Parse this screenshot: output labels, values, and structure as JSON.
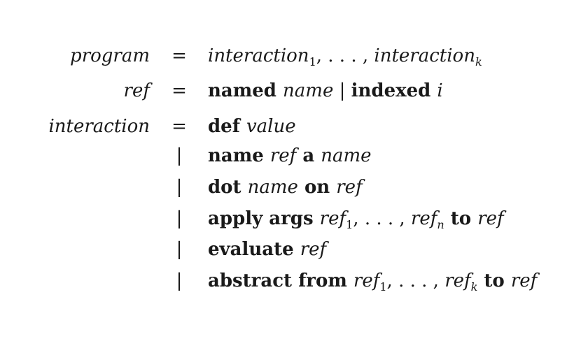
{
  "rules": [
    {
      "lhs": "program",
      "op": "=",
      "tokens": [
        {
          "kind": "it",
          "text": "interaction"
        },
        {
          "kind": "sub",
          "text": "1"
        },
        {
          "kind": "txt",
          "text": ",  . . . ,  "
        },
        {
          "kind": "it",
          "text": "interaction"
        },
        {
          "kind": "subit",
          "text": "k"
        }
      ]
    },
    {
      "lhs": "ref",
      "op": "=",
      "tokens": [
        {
          "kind": "kw",
          "text": "named "
        },
        {
          "kind": "it",
          "text": "name"
        },
        {
          "kind": "sep",
          "text": "  |  "
        },
        {
          "kind": "kw",
          "text": "indexed "
        },
        {
          "kind": "it",
          "text": "i"
        }
      ]
    },
    {
      "lhs": "interaction",
      "op": "=",
      "tokens": [
        {
          "kind": "kw",
          "text": "def "
        },
        {
          "kind": "it",
          "text": "value"
        }
      ]
    },
    {
      "lhs": "",
      "op": "|",
      "tokens": [
        {
          "kind": "kw",
          "text": "name "
        },
        {
          "kind": "it",
          "text": "ref"
        },
        {
          "kind": "kw",
          "text": " a "
        },
        {
          "kind": "it",
          "text": "name"
        }
      ]
    },
    {
      "lhs": "",
      "op": "|",
      "tokens": [
        {
          "kind": "kw",
          "text": "dot "
        },
        {
          "kind": "it",
          "text": "name"
        },
        {
          "kind": "kw",
          "text": " on "
        },
        {
          "kind": "it",
          "text": "ref"
        }
      ]
    },
    {
      "lhs": "",
      "op": "|",
      "tokens": [
        {
          "kind": "kw",
          "text": "apply args "
        },
        {
          "kind": "it",
          "text": "ref"
        },
        {
          "kind": "sub",
          "text": "1"
        },
        {
          "kind": "txt",
          "text": ", . . . , "
        },
        {
          "kind": "it",
          "text": "ref"
        },
        {
          "kind": "subit",
          "text": "n"
        },
        {
          "kind": "kw",
          "text": " to "
        },
        {
          "kind": "it",
          "text": "ref"
        }
      ]
    },
    {
      "lhs": "",
      "op": "|",
      "tokens": [
        {
          "kind": "kw",
          "text": "evaluate "
        },
        {
          "kind": "it",
          "text": "ref"
        }
      ]
    },
    {
      "lhs": "",
      "op": "|",
      "tokens": [
        {
          "kind": "kw",
          "text": "abstract from "
        },
        {
          "kind": "it",
          "text": "ref"
        },
        {
          "kind": "sub",
          "text": "1"
        },
        {
          "kind": "txt",
          "text": ", . . . , "
        },
        {
          "kind": "it",
          "text": "ref"
        },
        {
          "kind": "subit",
          "text": "k"
        },
        {
          "kind": "kw",
          "text": " to "
        },
        {
          "kind": "it",
          "text": "ref"
        }
      ]
    }
  ]
}
